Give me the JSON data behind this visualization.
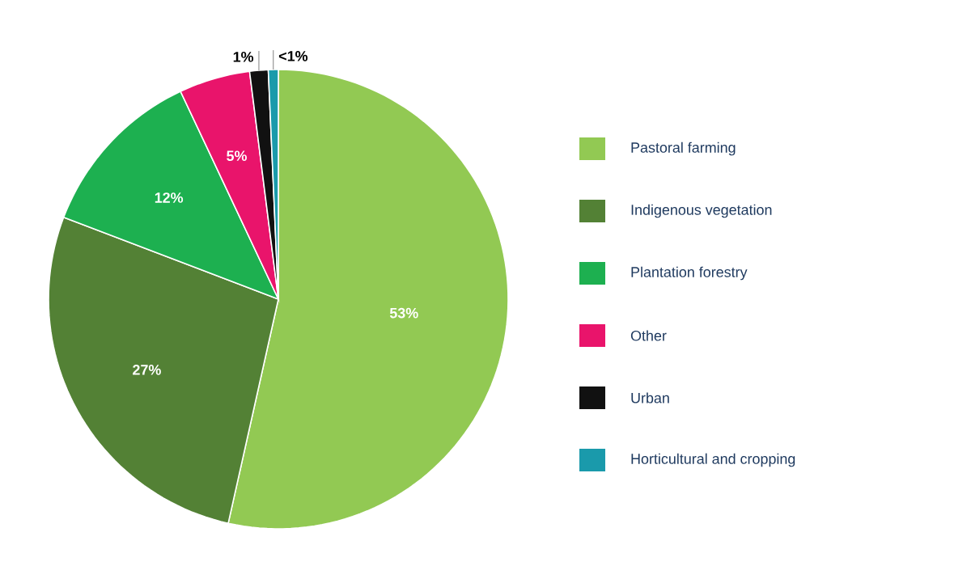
{
  "chart_data": {
    "type": "pie",
    "categories": [
      "Pastoral farming",
      "Indigenous vegetation",
      "Plantation forestry",
      "Other",
      "Urban",
      "Horticultural and cropping"
    ],
    "values": [
      53.5,
      27.3,
      12.2,
      5.0,
      1.3,
      0.7
    ],
    "value_labels": [
      "53%",
      "27%",
      "12%",
      "5%",
      "1%",
      "<1%"
    ],
    "colors": [
      "#92c953",
      "#538135",
      "#1db050",
      "#e9146b",
      "#111111",
      "#1a9aab"
    ],
    "legend": "right"
  }
}
